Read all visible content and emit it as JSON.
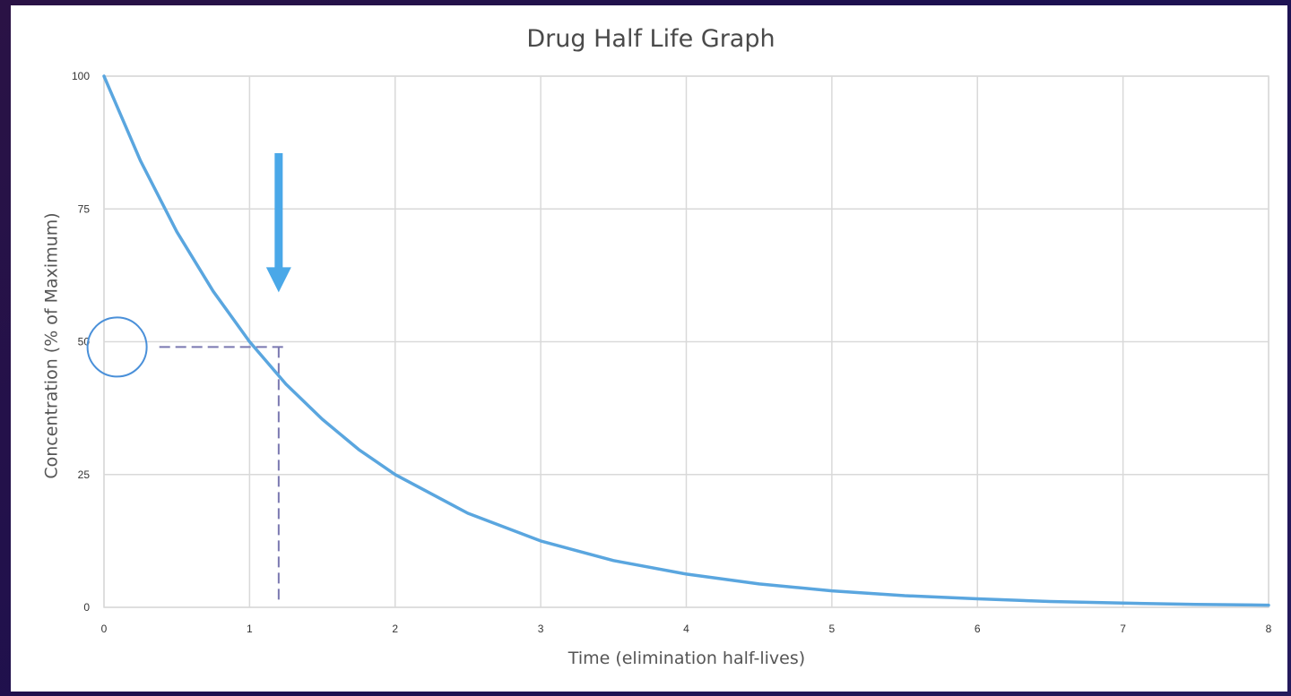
{
  "colors": {
    "line": "#5aa6df",
    "arrow": "#4aa8e8",
    "dashed": "#7a78b0",
    "circle": "#4a90d9",
    "grid": "#d9d9d9"
  },
  "chart_data": {
    "type": "line",
    "title": "Drug Half Life Graph",
    "xlabel": "Time (elimination half-lives)",
    "ylabel": "Concentration (% of Maximum)",
    "xlim": [
      0,
      8
    ],
    "ylim": [
      0,
      100
    ],
    "x_ticks": [
      0,
      1,
      2,
      3,
      4,
      5,
      6,
      7,
      8
    ],
    "y_ticks": [
      0,
      25,
      50,
      75,
      100
    ],
    "grid": true,
    "series": [
      {
        "x": [
          0,
          0.25,
          0.5,
          0.75,
          1,
          1.25,
          1.5,
          1.75,
          2,
          2.5,
          3,
          3.5,
          4,
          4.5,
          5,
          5.5,
          6,
          6.5,
          7,
          7.5,
          8
        ],
        "values": [
          100,
          84.1,
          70.7,
          59.5,
          50,
          42.0,
          35.4,
          29.7,
          25,
          17.7,
          12.5,
          8.8,
          6.25,
          4.4,
          3.1,
          2.2,
          1.6,
          1.1,
          0.8,
          0.55,
          0.4
        ]
      }
    ],
    "annotations": [
      {
        "type": "arrow-down",
        "x": 1.2,
        "y_from": 85.5,
        "y_to": 59.3
      },
      {
        "type": "dashed-guide",
        "x_from": 0.38,
        "x_to": 1.2,
        "y": 49
      },
      {
        "type": "dashed-guide-vertical",
        "x": 1.2,
        "y_from": 49,
        "y_to": 1
      },
      {
        "type": "circle",
        "x": 0.09,
        "y": 49
      }
    ]
  }
}
